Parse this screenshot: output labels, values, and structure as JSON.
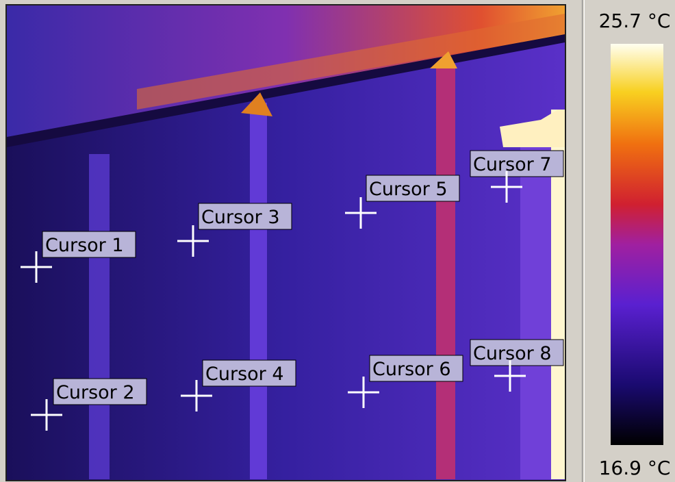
{
  "scale": {
    "max_label": "25.7 °C",
    "min_label": "16.9 °C"
  },
  "cursors": [
    "Cursor 1",
    "Cursor 2",
    "Cursor 3",
    "Cursor 4",
    "Cursor 5",
    "Cursor 6",
    "Cursor 7",
    "Cursor 8"
  ]
}
